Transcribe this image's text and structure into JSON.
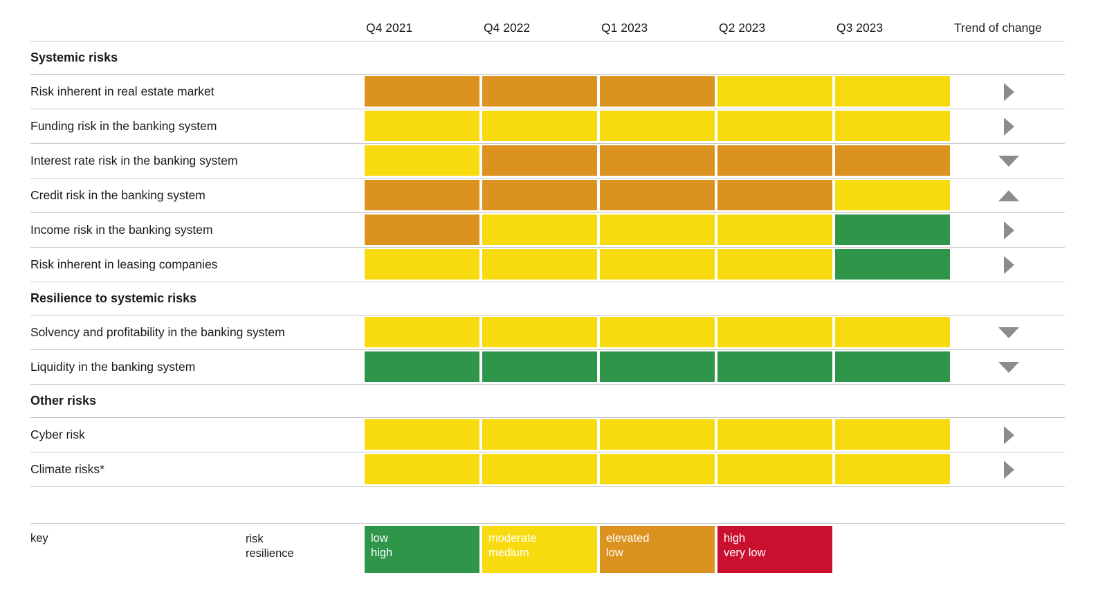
{
  "chart_data": {
    "type": "heatmap",
    "columns": [
      "Q4 2021",
      "Q4 2022",
      "Q1 2023",
      "Q2 2023",
      "Q3 2023"
    ],
    "trend_header": "Trend of change",
    "sections": [
      {
        "title": "Systemic risks",
        "rows": [
          {
            "label": "Risk inherent in real estate market",
            "levels": [
              "elevated",
              "elevated",
              "elevated",
              "moderate",
              "moderate"
            ],
            "trend": "right"
          },
          {
            "label": "Funding risk in the banking system",
            "levels": [
              "moderate",
              "moderate",
              "moderate",
              "moderate",
              "moderate"
            ],
            "trend": "right"
          },
          {
            "label": "Interest rate risk in the banking system",
            "levels": [
              "moderate",
              "elevated",
              "elevated",
              "elevated",
              "elevated"
            ],
            "trend": "down"
          },
          {
            "label": "Credit risk in the banking system",
            "levels": [
              "elevated",
              "elevated",
              "elevated",
              "elevated",
              "moderate"
            ],
            "trend": "up"
          },
          {
            "label": "Income risk in the banking system",
            "levels": [
              "elevated",
              "moderate",
              "moderate",
              "moderate",
              "low"
            ],
            "trend": "right"
          },
          {
            "label": "Risk inherent in leasing companies",
            "levels": [
              "moderate",
              "moderate",
              "moderate",
              "moderate",
              "low"
            ],
            "trend": "right"
          }
        ]
      },
      {
        "title": "Resilience to systemic risks",
        "rows": [
          {
            "label": "Solvency and profitability in the banking system",
            "levels": [
              "moderate",
              "moderate",
              "moderate",
              "moderate",
              "moderate"
            ],
            "trend": "down"
          },
          {
            "label": "Liquidity in the banking system",
            "levels": [
              "low",
              "low",
              "low",
              "low",
              "low"
            ],
            "trend": "down"
          }
        ]
      },
      {
        "title": "Other risks",
        "rows": [
          {
            "label": "Cyber risk",
            "levels": [
              "moderate",
              "moderate",
              "moderate",
              "moderate",
              "moderate"
            ],
            "trend": "right"
          },
          {
            "label": "Climate risks*",
            "levels": [
              "moderate",
              "moderate",
              "moderate",
              "moderate",
              "moderate"
            ],
            "trend": "right"
          }
        ]
      }
    ],
    "legend": {
      "key_label": "key",
      "scale_labels": [
        "risk",
        "resilience"
      ],
      "items": [
        {
          "level": "low",
          "risk": "low",
          "resilience": "high"
        },
        {
          "level": "moderate",
          "risk": "moderate",
          "resilience": "medium"
        },
        {
          "level": "elevated",
          "risk": "elevated",
          "resilience": "low"
        },
        {
          "level": "high",
          "risk": "high",
          "resilience": "very low"
        }
      ]
    },
    "colors": {
      "low": "#2E9549",
      "moderate": "#F8DB0E",
      "elevated": "#DB921E",
      "high": "#C9102E",
      "arrow": "#8C8C8C",
      "grid_line": "#C6C6C6",
      "text": "#1A1A1A"
    },
    "legend_position": "bottom",
    "grid": "horizontal-lines"
  }
}
